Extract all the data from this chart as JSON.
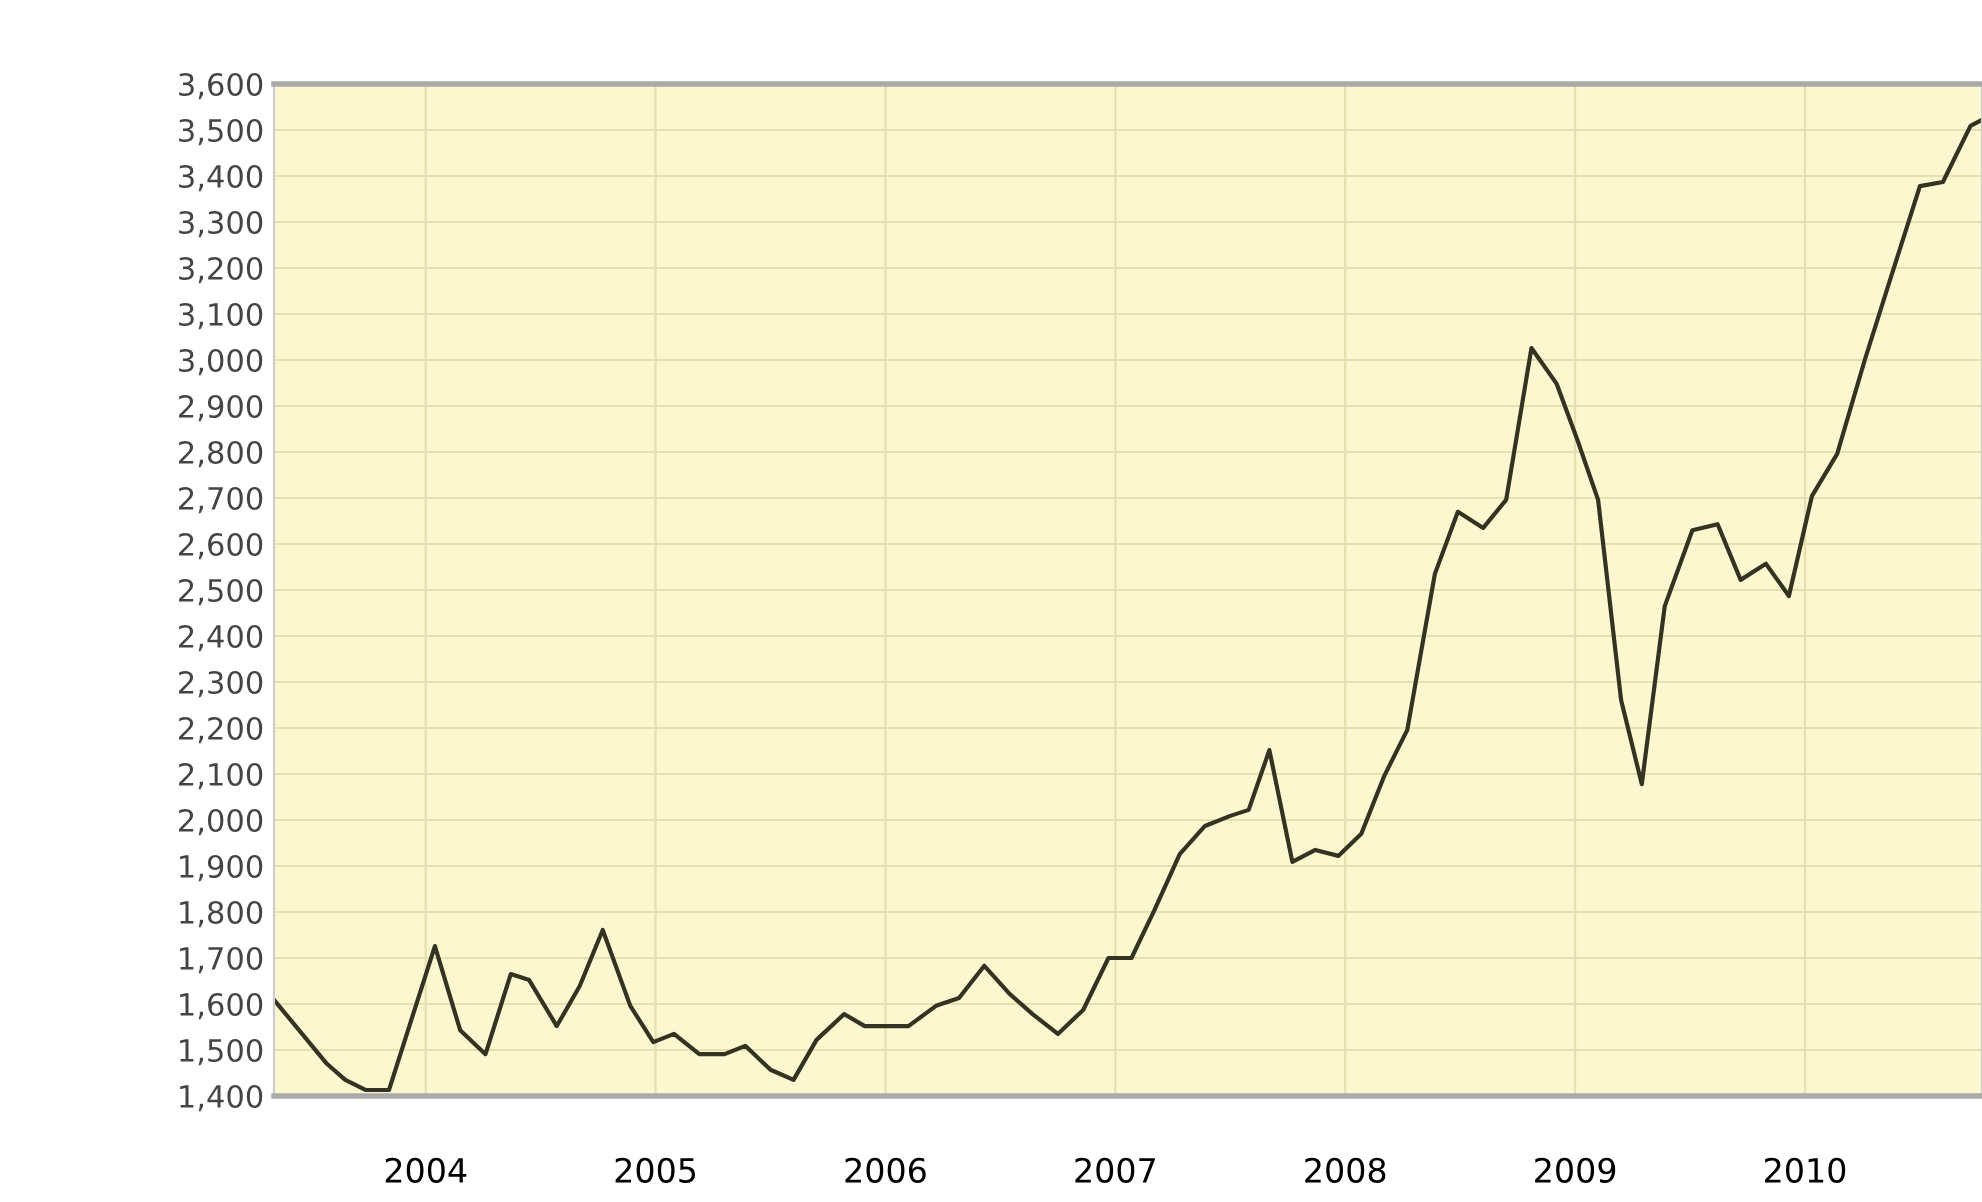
{
  "chart_data": {
    "type": "line",
    "x": [
      2003.34,
      2003.57,
      2003.65,
      2003.74,
      2003.84,
      2004.04,
      2004.15,
      2004.26,
      2004.37,
      2004.45,
      2004.57,
      2004.67,
      2004.77,
      2004.89,
      2004.99,
      2005.08,
      2005.19,
      2005.3,
      2005.39,
      2005.5,
      2005.6,
      2005.7,
      2005.82,
      2005.91,
      2006.1,
      2006.22,
      2006.32,
      2006.43,
      2006.54,
      2006.64,
      2006.75,
      2006.86,
      2006.97,
      2007.07,
      2007.17,
      2007.28,
      2007.39,
      2007.5,
      2007.58,
      2007.67,
      2007.77,
      2007.87,
      2007.97,
      2008.07,
      2008.17,
      2008.27,
      2008.39,
      2008.49,
      2008.6,
      2008.7,
      2008.81,
      2008.92,
      2009.01,
      2009.1,
      2009.2,
      2009.29,
      2009.39,
      2009.51,
      2009.62,
      2009.72,
      2009.83,
      2009.93,
      2010.03,
      2010.14,
      2010.26,
      2010.37,
      2010.5,
      2010.6,
      2010.72,
      2010.77
    ],
    "series": [
      {
        "color": "#333322",
        "values": [
          1609,
          1470,
          1435,
          1413,
          1413,
          1726,
          1543,
          1491,
          1665,
          1652,
          1552,
          1639,
          1761,
          1596,
          1517,
          1535,
          1491,
          1491,
          1509,
          1457,
          1435,
          1522,
          1578,
          1552,
          1552,
          1596,
          1613,
          1683,
          1622,
          1578,
          1535,
          1587,
          1700,
          1700,
          1804,
          1926,
          1987,
          2009,
          2022,
          2152,
          1909,
          1935,
          1922,
          1970,
          2096,
          2196,
          2535,
          2670,
          2635,
          2696,
          3026,
          2948,
          2826,
          2696,
          2261,
          2078,
          2465,
          2630,
          2643,
          2522,
          2557,
          2487,
          2704,
          2796,
          3000,
          3174,
          3378,
          3387,
          3509,
          3522
        ]
      }
    ],
    "xlim": [
      2003.34,
      2010.77
    ],
    "xticks": [
      2004,
      2005,
      2006,
      2007,
      2008,
      2009,
      2010
    ],
    "ylim": [
      1400,
      3600
    ],
    "yticks": [
      {
        "value": 1400,
        "label": "1,400"
      },
      {
        "value": 1500,
        "label": "1,500"
      },
      {
        "value": 1600,
        "label": "1,600"
      },
      {
        "value": 1700,
        "label": "1,700"
      },
      {
        "value": 1800,
        "label": "1,800"
      },
      {
        "value": 1900,
        "label": "1,900"
      },
      {
        "value": 2000,
        "label": "2,000"
      },
      {
        "value": 2100,
        "label": "2,100"
      },
      {
        "value": 2200,
        "label": "2,200"
      },
      {
        "value": 2300,
        "label": "2,300"
      },
      {
        "value": 2400,
        "label": "2,400"
      },
      {
        "value": 2500,
        "label": "2,500"
      },
      {
        "value": 2600,
        "label": "2,600"
      },
      {
        "value": 2700,
        "label": "2,700"
      },
      {
        "value": 2800,
        "label": "2,800"
      },
      {
        "value": 2900,
        "label": "2,900"
      },
      {
        "value": 3000,
        "label": "3,000"
      },
      {
        "value": 3100,
        "label": "3,100"
      },
      {
        "value": 3200,
        "label": "3,200"
      },
      {
        "value": 3300,
        "label": "3,300"
      },
      {
        "value": 3400,
        "label": "3,400"
      },
      {
        "value": 3500,
        "label": "3,500"
      },
      {
        "value": 3600,
        "label": "3,600"
      }
    ],
    "grid": true,
    "marker": "none",
    "line_style": "solid"
  }
}
